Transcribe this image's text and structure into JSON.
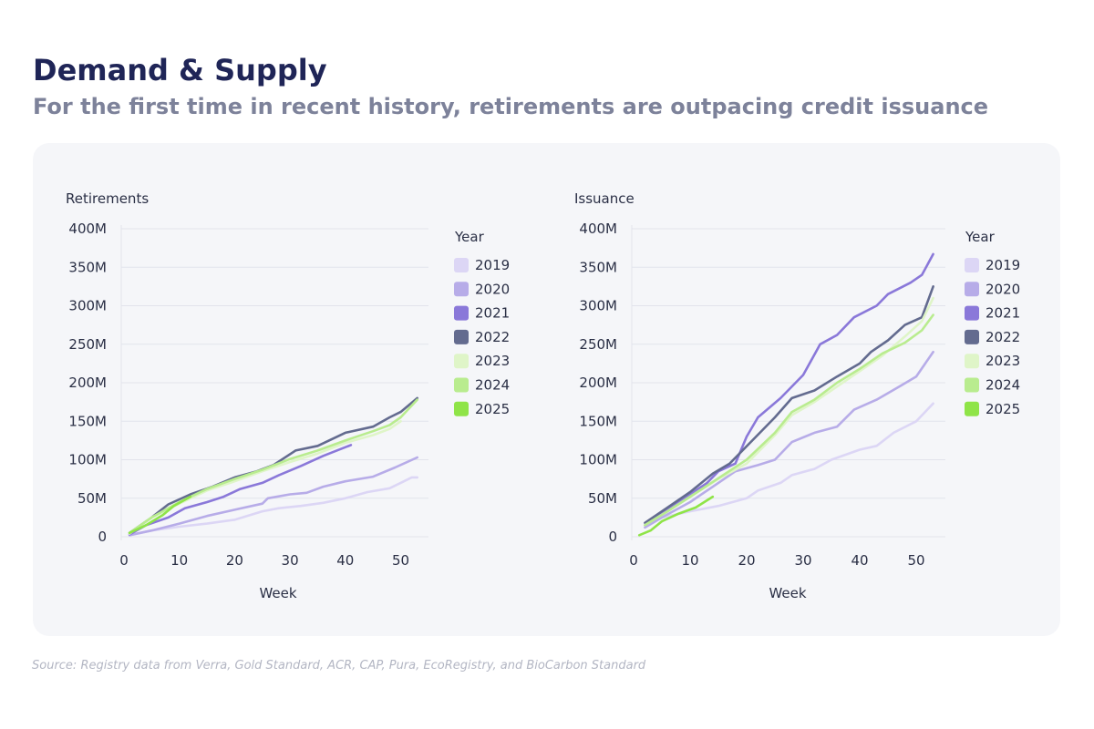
{
  "header": {
    "title": "Demand & Supply",
    "subtitle": "For the first time in recent history, retirements are outpacing credit issuance"
  },
  "footer": {
    "source": "Source: Registry data from Verra, Gold Standard, ACR, CAP, Pura, EcoRegistry, and BioCarbon Standard"
  },
  "colors": {
    "2019": "#dcd6f5",
    "2020": "#b7ace8",
    "2021": "#8a78d9",
    "2022": "#636b8f",
    "2023": "#dff5c8",
    "2024": "#b9ec8f",
    "2025": "#8fe448"
  },
  "chart_data": [
    {
      "type": "line",
      "title": "Retirements",
      "xlabel": "Week",
      "ylabel": "",
      "xlim": [
        0,
        55
      ],
      "ylim": [
        0,
        400
      ],
      "x_ticks": [
        "0",
        "10",
        "20",
        "30",
        "40",
        "50"
      ],
      "y_ticks": [
        "0",
        "50M",
        "100M",
        "150M",
        "200M",
        "250M",
        "300M",
        "350M",
        "400M"
      ],
      "grid": true,
      "legend_title": "Year",
      "legend_position": "right",
      "series": [
        {
          "name": "2019",
          "points": [
            [
              1,
              2
            ],
            [
              5,
              8
            ],
            [
              10,
              13
            ],
            [
              15,
              17
            ],
            [
              20,
              22
            ],
            [
              25,
              33
            ],
            [
              28,
              37
            ],
            [
              32,
              40
            ],
            [
              36,
              44
            ],
            [
              40,
              50
            ],
            [
              44,
              58
            ],
            [
              48,
              63
            ],
            [
              50,
              70
            ],
            [
              52,
              77
            ],
            [
              53,
              77
            ]
          ]
        },
        {
          "name": "2020",
          "points": [
            [
              1,
              2
            ],
            [
              5,
              8
            ],
            [
              10,
              17
            ],
            [
              15,
              27
            ],
            [
              20,
              35
            ],
            [
              25,
              43
            ],
            [
              26,
              50
            ],
            [
              30,
              55
            ],
            [
              33,
              57
            ],
            [
              36,
              65
            ],
            [
              40,
              72
            ],
            [
              45,
              78
            ],
            [
              49,
              90
            ],
            [
              53,
              103
            ]
          ]
        },
        {
          "name": "2021",
          "points": [
            [
              1,
              3
            ],
            [
              4,
              15
            ],
            [
              8,
              25
            ],
            [
              11,
              37
            ],
            [
              15,
              45
            ],
            [
              18,
              52
            ],
            [
              21,
              62
            ],
            [
              25,
              70
            ],
            [
              28,
              80
            ],
            [
              32,
              92
            ],
            [
              36,
              105
            ],
            [
              41,
              119
            ]
          ]
        },
        {
          "name": "2022",
          "points": [
            [
              1,
              5
            ],
            [
              5,
              25
            ],
            [
              8,
              42
            ],
            [
              12,
              55
            ],
            [
              16,
              65
            ],
            [
              20,
              77
            ],
            [
              24,
              85
            ],
            [
              27,
              93
            ],
            [
              31,
              112
            ],
            [
              35,
              118
            ],
            [
              40,
              135
            ],
            [
              45,
              143
            ],
            [
              48,
              155
            ],
            [
              50,
              162
            ],
            [
              53,
              180
            ]
          ]
        },
        {
          "name": "2023",
          "points": [
            [
              1,
              4
            ],
            [
              5,
              25
            ],
            [
              10,
              43
            ],
            [
              15,
              60
            ],
            [
              20,
              72
            ],
            [
              25,
              85
            ],
            [
              30,
              97
            ],
            [
              35,
              108
            ],
            [
              40,
              122
            ],
            [
              45,
              132
            ],
            [
              48,
              140
            ],
            [
              50,
              150
            ]
          ]
        },
        {
          "name": "2024",
          "points": [
            [
              1,
              5
            ],
            [
              5,
              25
            ],
            [
              10,
              45
            ],
            [
              15,
              62
            ],
            [
              20,
              75
            ],
            [
              25,
              87
            ],
            [
              30,
              101
            ],
            [
              35,
              112
            ],
            [
              40,
              125
            ],
            [
              45,
              137
            ],
            [
              48,
              145
            ],
            [
              50,
              155
            ],
            [
              53,
              178
            ]
          ]
        },
        {
          "name": "2025",
          "points": [
            [
              1,
              5
            ],
            [
              4,
              15
            ],
            [
              7,
              28
            ],
            [
              9,
              40
            ],
            [
              12,
              52
            ]
          ]
        }
      ]
    },
    {
      "type": "line",
      "title": "Issuance",
      "xlabel": "Week",
      "ylabel": "",
      "xlim": [
        0,
        55
      ],
      "ylim": [
        0,
        400
      ],
      "x_ticks": [
        "0",
        "10",
        "20",
        "30",
        "40",
        "50"
      ],
      "y_ticks": [
        "0",
        "50M",
        "100M",
        "150M",
        "200M",
        "250M",
        "300M",
        "350M",
        "400M"
      ],
      "grid": true,
      "legend_title": "Year",
      "legend_position": "right",
      "series": [
        {
          "name": "2019",
          "points": [
            [
              2,
              15
            ],
            [
              5,
              25
            ],
            [
              10,
              33
            ],
            [
              15,
              40
            ],
            [
              20,
              50
            ],
            [
              22,
              60
            ],
            [
              26,
              70
            ],
            [
              28,
              80
            ],
            [
              32,
              88
            ],
            [
              35,
              100
            ],
            [
              40,
              113
            ],
            [
              43,
              118
            ],
            [
              46,
              135
            ],
            [
              50,
              150
            ],
            [
              53,
              173
            ]
          ]
        },
        {
          "name": "2020",
          "points": [
            [
              2,
              12
            ],
            [
              5,
              25
            ],
            [
              10,
              45
            ],
            [
              15,
              70
            ],
            [
              18,
              85
            ],
            [
              22,
              93
            ],
            [
              25,
              100
            ],
            [
              28,
              123
            ],
            [
              32,
              135
            ],
            [
              36,
              143
            ],
            [
              39,
              165
            ],
            [
              43,
              178
            ],
            [
              47,
              195
            ],
            [
              50,
              208
            ],
            [
              53,
              240
            ]
          ]
        },
        {
          "name": "2021",
          "points": [
            [
              2,
              15
            ],
            [
              6,
              35
            ],
            [
              10,
              55
            ],
            [
              13,
              70
            ],
            [
              15,
              85
            ],
            [
              18,
              95
            ],
            [
              20,
              130
            ],
            [
              22,
              155
            ],
            [
              26,
              180
            ],
            [
              30,
              210
            ],
            [
              33,
              250
            ],
            [
              36,
              262
            ],
            [
              39,
              285
            ],
            [
              43,
              300
            ],
            [
              45,
              315
            ],
            [
              49,
              330
            ],
            [
              51,
              340
            ],
            [
              53,
              367
            ]
          ]
        },
        {
          "name": "2022",
          "points": [
            [
              2,
              18
            ],
            [
              6,
              38
            ],
            [
              10,
              58
            ],
            [
              14,
              82
            ],
            [
              17,
              95
            ],
            [
              21,
              125
            ],
            [
              25,
              155
            ],
            [
              28,
              180
            ],
            [
              32,
              190
            ],
            [
              36,
              208
            ],
            [
              40,
              225
            ],
            [
              42,
              240
            ],
            [
              45,
              255
            ],
            [
              48,
              275
            ],
            [
              51,
              285
            ],
            [
              53,
              325
            ]
          ]
        },
        {
          "name": "2023",
          "points": [
            [
              2,
              15
            ],
            [
              6,
              33
            ],
            [
              10,
              52
            ],
            [
              15,
              75
            ],
            [
              20,
              95
            ],
            [
              25,
              132
            ],
            [
              28,
              158
            ],
            [
              32,
              175
            ],
            [
              36,
              195
            ],
            [
              40,
              215
            ],
            [
              44,
              235
            ],
            [
              48,
              260
            ],
            [
              51,
              280
            ],
            [
              53,
              310
            ]
          ]
        },
        {
          "name": "2024",
          "points": [
            [
              2,
              15
            ],
            [
              6,
              33
            ],
            [
              10,
              52
            ],
            [
              15,
              76
            ],
            [
              20,
              100
            ],
            [
              25,
              135
            ],
            [
              28,
              162
            ],
            [
              32,
              178
            ],
            [
              36,
              200
            ],
            [
              40,
              218
            ],
            [
              44,
              238
            ],
            [
              48,
              252
            ],
            [
              51,
              268
            ],
            [
              53,
              288
            ]
          ]
        },
        {
          "name": "2025",
          "points": [
            [
              1,
              2
            ],
            [
              3,
              8
            ],
            [
              5,
              20
            ],
            [
              8,
              30
            ],
            [
              11,
              38
            ],
            [
              14,
              52
            ]
          ]
        }
      ]
    }
  ]
}
